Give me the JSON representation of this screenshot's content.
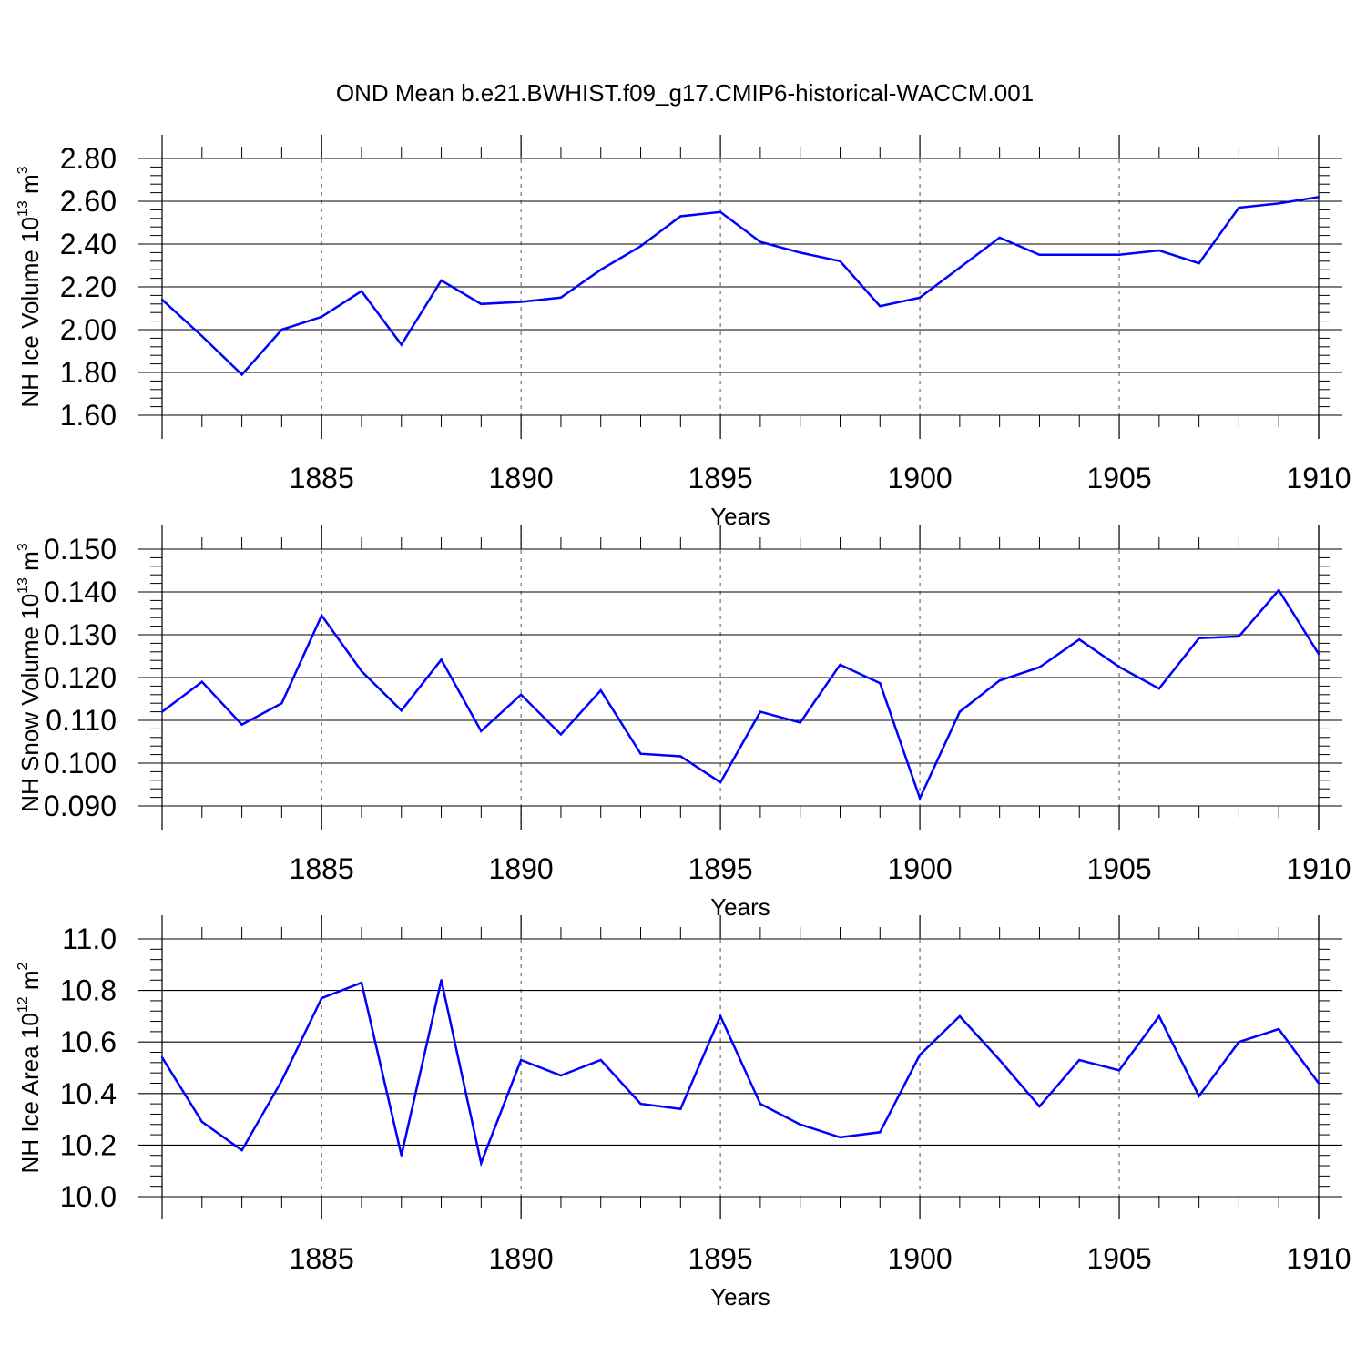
{
  "title": "OND Mean b.e21.BWHIST.f09_g17.CMIP6-historical-WACCM.001",
  "colors": {
    "line": "#0000ff",
    "axis": "#000000",
    "grid": "#555555"
  },
  "chart_data": [
    {
      "type": "line",
      "ylabel": {
        "main": "NH Ice Volume 10",
        "exp": "13",
        "unit": " m",
        "unit_exp": "3"
      },
      "xlabel": "Years",
      "xlim": [
        1881,
        1910
      ],
      "ylim": [
        1.6,
        2.8
      ],
      "xticks": [
        "1885",
        "1890",
        "1895",
        "1900",
        "1905",
        "1910"
      ],
      "yticks": [
        "1.60",
        "1.80",
        "2.00",
        "2.20",
        "2.40",
        "2.60",
        "2.80"
      ],
      "grid": "vertical dashed at major x ticks",
      "x": [
        1881,
        1882,
        1883,
        1884,
        1885,
        1886,
        1887,
        1888,
        1889,
        1890,
        1891,
        1892,
        1893,
        1894,
        1895,
        1896,
        1897,
        1898,
        1899,
        1900,
        1901,
        1902,
        1903,
        1904,
        1905,
        1906,
        1907,
        1908,
        1909,
        1910
      ],
      "values": [
        2.14,
        1.97,
        1.79,
        2.0,
        2.06,
        2.18,
        1.93,
        2.23,
        2.12,
        2.13,
        2.15,
        2.28,
        2.39,
        2.53,
        2.55,
        2.41,
        2.36,
        2.32,
        2.11,
        2.15,
        2.29,
        2.43,
        2.35,
        2.35,
        2.35,
        2.37,
        2.31,
        2.57,
        2.59,
        2.62
      ]
    },
    {
      "type": "line",
      "ylabel": {
        "main": "NH Snow Volume 10",
        "exp": "13",
        "unit": " m",
        "unit_exp": "3"
      },
      "xlabel": "Years",
      "xlim": [
        1881,
        1910
      ],
      "ylim": [
        0.09,
        0.15
      ],
      "xticks": [
        "1885",
        "1890",
        "1895",
        "1900",
        "1905",
        "1910"
      ],
      "yticks": [
        "0.090",
        "0.100",
        "0.110",
        "0.120",
        "0.130",
        "0.140",
        "0.150"
      ],
      "grid": "vertical dashed at major x ticks",
      "x": [
        1881,
        1882,
        1883,
        1884,
        1885,
        1886,
        1887,
        1888,
        1889,
        1890,
        1891,
        1892,
        1893,
        1894,
        1895,
        1896,
        1897,
        1898,
        1899,
        1900,
        1901,
        1902,
        1903,
        1904,
        1905,
        1906,
        1907,
        1908,
        1909,
        1910
      ],
      "values": [
        0.112,
        0.119,
        0.109,
        0.114,
        0.1345,
        0.1215,
        0.1123,
        0.1242,
        0.1075,
        0.116,
        0.1067,
        0.117,
        0.1022,
        0.1016,
        0.0955,
        0.112,
        0.1095,
        0.123,
        0.1187,
        0.0918,
        0.112,
        0.1193,
        0.1224,
        0.1289,
        0.1225,
        0.1174,
        0.1292,
        0.1296,
        0.1404,
        0.1255
      ]
    },
    {
      "type": "line",
      "ylabel": {
        "main": "NH Ice Area 10",
        "exp": "12",
        "unit": " m",
        "unit_exp": "2"
      },
      "xlabel": "Years",
      "xlim": [
        1881,
        1910
      ],
      "ylim": [
        10.0,
        11.0
      ],
      "xticks": [
        "1885",
        "1890",
        "1895",
        "1900",
        "1905",
        "1910"
      ],
      "yticks": [
        "10.0",
        "10.2",
        "10.4",
        "10.6",
        "10.8",
        "11.0"
      ],
      "grid": "vertical dashed at major x ticks",
      "x": [
        1881,
        1882,
        1883,
        1884,
        1885,
        1886,
        1887,
        1888,
        1889,
        1890,
        1891,
        1892,
        1893,
        1894,
        1895,
        1896,
        1897,
        1898,
        1899,
        1900,
        1901,
        1902,
        1903,
        1904,
        1905,
        1906,
        1907,
        1908,
        1909,
        1910
      ],
      "values": [
        10.54,
        10.29,
        10.18,
        10.45,
        10.77,
        10.83,
        10.16,
        10.84,
        10.13,
        10.53,
        10.47,
        10.53,
        10.36,
        10.34,
        10.7,
        10.36,
        10.28,
        10.23,
        10.25,
        10.55,
        10.7,
        10.53,
        10.35,
        10.53,
        10.49,
        10.7,
        10.39,
        10.6,
        10.65,
        10.44
      ]
    }
  ]
}
